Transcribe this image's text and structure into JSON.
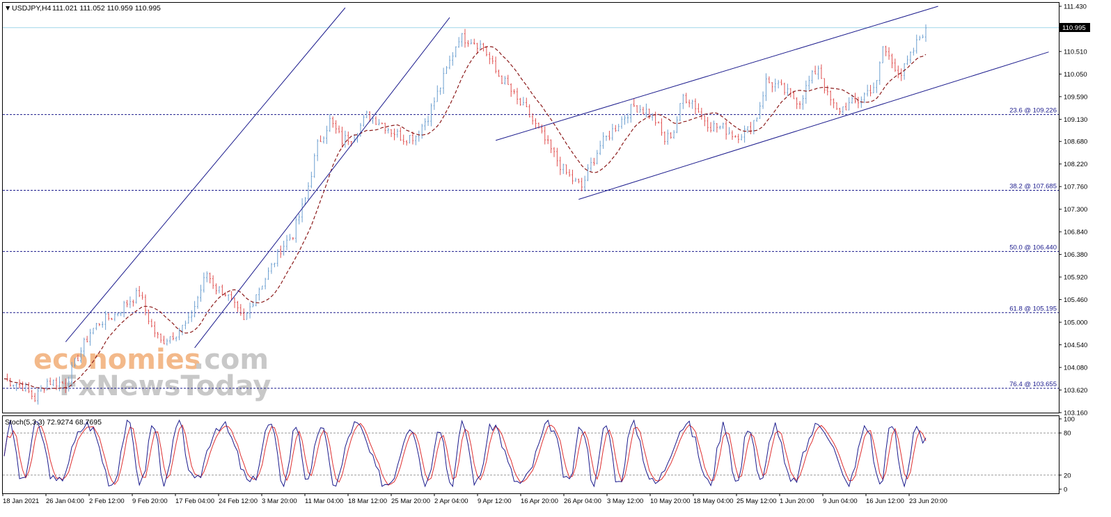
{
  "header": {
    "symbol": "USDJPY,H4",
    "ohlc": "111.021 111.052 110.959 110.995",
    "dropdown_glyph": "▼"
  },
  "current_price_label": "110.995",
  "watermark": {
    "line1a": "economies",
    "line1b": ".com",
    "line2": "FxNewsToday",
    "colors": {
      "orange": "#f3b98a",
      "gray": "#c8c8c8"
    }
  },
  "colors": {
    "bull": "#6c9fd0",
    "bear": "#e05050",
    "ma": "#8b1a1a",
    "channel": "#1a1a8c",
    "fib": "#1a1a8c",
    "price_line": "#9fd6e8",
    "stoch_main": "#1a1a8c",
    "stoch_signal": "#e03030"
  },
  "chart_data": {
    "type": "candlestick",
    "y_axis_ticks": [
      "111.430",
      "110.970",
      "110.510",
      "110.050",
      "109.590",
      "109.130",
      "108.680",
      "108.220",
      "107.760",
      "107.300",
      "106.840",
      "106.380",
      "105.920",
      "105.460",
      "105.000",
      "104.540",
      "104.080",
      "103.620",
      "103.160"
    ],
    "ylim": [
      103.16,
      111.43
    ],
    "x_axis_ticks": [
      "18 Jan 2021",
      "26 Jan 04:00",
      "2 Feb 12:00",
      "9 Feb 20:00",
      "17 Feb 04:00",
      "24 Feb 12:00",
      "3 Mar 20:00",
      "11 Mar 04:00",
      "18 Mar 12:00",
      "25 Mar 20:00",
      "2 Apr 04:00",
      "9 Apr 12:00",
      "16 Apr 20:00",
      "26 Apr 04:00",
      "3 May 12:00",
      "10 May 20:00",
      "18 May 04:00",
      "25 May 12:00",
      "1 Jun 20:00",
      "9 Jun 04:00",
      "16 Jun 12:00",
      "23 Jun 20:00"
    ],
    "close_path": [
      [
        0,
        103.85
      ],
      [
        6,
        103.7
      ],
      [
        10,
        103.45
      ],
      [
        14,
        103.8
      ],
      [
        20,
        103.75
      ],
      [
        24,
        104.3
      ],
      [
        28,
        104.8
      ],
      [
        31,
        105.0
      ],
      [
        36,
        105.15
      ],
      [
        40,
        105.4
      ],
      [
        44,
        105.6
      ],
      [
        48,
        104.9
      ],
      [
        51,
        104.6
      ],
      [
        56,
        104.8
      ],
      [
        60,
        105.0
      ],
      [
        63,
        105.5
      ],
      [
        66,
        106.0
      ],
      [
        69,
        105.7
      ],
      [
        72,
        105.6
      ],
      [
        75,
        105.3
      ],
      [
        78,
        105.0
      ],
      [
        82,
        105.6
      ],
      [
        86,
        106.0
      ],
      [
        90,
        106.5
      ],
      [
        94,
        106.8
      ],
      [
        98,
        107.5
      ],
      [
        102,
        108.6
      ],
      [
        106,
        109.1
      ],
      [
        110,
        108.7
      ],
      [
        114,
        108.8
      ],
      [
        118,
        109.2
      ],
      [
        122,
        109.1
      ],
      [
        126,
        108.9
      ],
      [
        130,
        108.75
      ],
      [
        134,
        108.8
      ],
      [
        138,
        109.2
      ],
      [
        142,
        109.8
      ],
      [
        145,
        110.3
      ],
      [
        148,
        110.8
      ],
      [
        152,
        110.75
      ],
      [
        156,
        110.6
      ],
      [
        160,
        110.1
      ],
      [
        164,
        109.8
      ],
      [
        167,
        109.5
      ],
      [
        170,
        109.3
      ],
      [
        174,
        108.9
      ],
      [
        178,
        108.5
      ],
      [
        182,
        108.1
      ],
      [
        185,
        107.9
      ],
      [
        188,
        107.75
      ],
      [
        191,
        108.2
      ],
      [
        194,
        108.6
      ],
      [
        198,
        108.9
      ],
      [
        202,
        109.2
      ],
      [
        205,
        109.4
      ],
      [
        209,
        109.3
      ],
      [
        212,
        109.1
      ],
      [
        215,
        108.7
      ],
      [
        218,
        108.9
      ],
      [
        221,
        109.6
      ],
      [
        224,
        109.5
      ],
      [
        227,
        109.2
      ],
      [
        230,
        109.0
      ],
      [
        234,
        108.95
      ],
      [
        238,
        108.8
      ],
      [
        242,
        108.9
      ],
      [
        245,
        109.2
      ],
      [
        248,
        109.9
      ],
      [
        252,
        109.8
      ],
      [
        256,
        109.6
      ],
      [
        259,
        109.5
      ],
      [
        262,
        109.9
      ],
      [
        265,
        110.2
      ],
      [
        268,
        109.6
      ],
      [
        271,
        109.3
      ],
      [
        274,
        109.4
      ],
      [
        278,
        109.5
      ],
      [
        281,
        109.7
      ],
      [
        284,
        109.85
      ],
      [
        286,
        110.6
      ],
      [
        289,
        110.3
      ],
      [
        292,
        110.05
      ],
      [
        295,
        110.4
      ],
      [
        298,
        110.8
      ],
      [
        300,
        110.99
      ]
    ],
    "moving_average": "dashed, period not shown",
    "fibonacci_levels": [
      {
        "label": "23.6 @ 109.226",
        "value": 109.226
      },
      {
        "label": "38.2 @ 107.685",
        "value": 107.685
      },
      {
        "label": "50.0 @ 106.440",
        "value": 106.44
      },
      {
        "label": "61.8 @ 105.195",
        "value": 105.195
      },
      {
        "label": "76.4 @ 103.655",
        "value": 103.655
      }
    ],
    "current_price": 110.995,
    "stochastic": {
      "label": "Stoch(5,3,3) 72.9274 68.7695",
      "main": 72.9274,
      "signal": 68.7695,
      "axis_ticks": [
        "100",
        "80",
        "20",
        "0"
      ],
      "levels": [
        80,
        20
      ],
      "ylim": [
        0,
        100
      ]
    }
  }
}
